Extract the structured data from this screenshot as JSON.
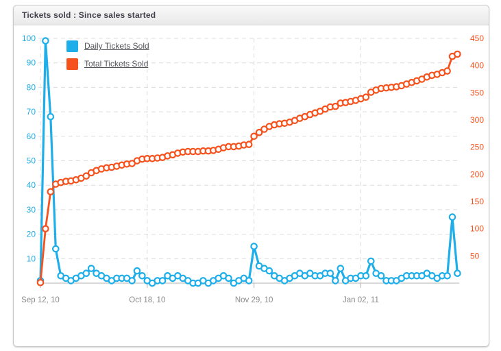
{
  "panel": {
    "title": "Tickets sold : Since sales started"
  },
  "chart_data": {
    "type": "line",
    "title": "Tickets sold : Since sales started",
    "grid": "dashed",
    "legend_position": "top-left-inside",
    "x_tick_labels": [
      "Sep 12, 10",
      "Oct 18, 10",
      "Nov 29, 10",
      "Jan 02, 11"
    ],
    "x_tick_indices": [
      0,
      21,
      42,
      63
    ],
    "left_axis": {
      "min": 0,
      "max": 100,
      "ticks": [
        10,
        20,
        30,
        40,
        50,
        60,
        70,
        80,
        90,
        100
      ],
      "label_color": "#1EAEE9"
    },
    "right_axis": {
      "min": 0,
      "max": 450,
      "ticks": [
        50,
        100,
        150,
        200,
        250,
        300,
        350,
        400,
        450
      ],
      "label_color": "#F5521D"
    },
    "series": [
      {
        "name": "Daily Tickets Sold",
        "color": "#1EAEE9",
        "axis": "left",
        "marker": "open-circle",
        "values": [
          1,
          99,
          68,
          14,
          3,
          2,
          1,
          2,
          3,
          4,
          6,
          4,
          3,
          2,
          1,
          2,
          2,
          2,
          1,
          5,
          3,
          1,
          0,
          1,
          1,
          3,
          2,
          3,
          2,
          1,
          0,
          0,
          1,
          0,
          1,
          2,
          3,
          2,
          0,
          1,
          2,
          1,
          15,
          7,
          6,
          5,
          3,
          2,
          1,
          2,
          3,
          4,
          3,
          4,
          3,
          3,
          4,
          4,
          1,
          6,
          1,
          2,
          2,
          3,
          3,
          9,
          4,
          3,
          1,
          1,
          1,
          2,
          3,
          3,
          3,
          3,
          4,
          3,
          2,
          3,
          3,
          27,
          4
        ]
      },
      {
        "name": "Total Tickets Sold",
        "color": "#F5521D",
        "axis": "right",
        "marker": "open-circle",
        "values": [
          1,
          100,
          168,
          182,
          185,
          187,
          188,
          190,
          193,
          197,
          203,
          207,
          210,
          212,
          213,
          215,
          217,
          219,
          220,
          225,
          228,
          229,
          229,
          230,
          231,
          234,
          236,
          239,
          241,
          242,
          242,
          242,
          243,
          243,
          244,
          246,
          249,
          251,
          251,
          252,
          254,
          255,
          270,
          277,
          283,
          288,
          291,
          293,
          294,
          296,
          299,
          303,
          306,
          310,
          313,
          316,
          320,
          324,
          325,
          331,
          332,
          334,
          336,
          339,
          342,
          351,
          355,
          358,
          359,
          360,
          361,
          363,
          366,
          369,
          372,
          375,
          379,
          382,
          384,
          387,
          390,
          417,
          421
        ]
      }
    ],
    "style": {
      "grid_color": "#dcdcdc",
      "axis_line_color": "#b3b3b3",
      "x_label_color": "#8a8a8a",
      "marker_fill": "#ffffff"
    }
  }
}
